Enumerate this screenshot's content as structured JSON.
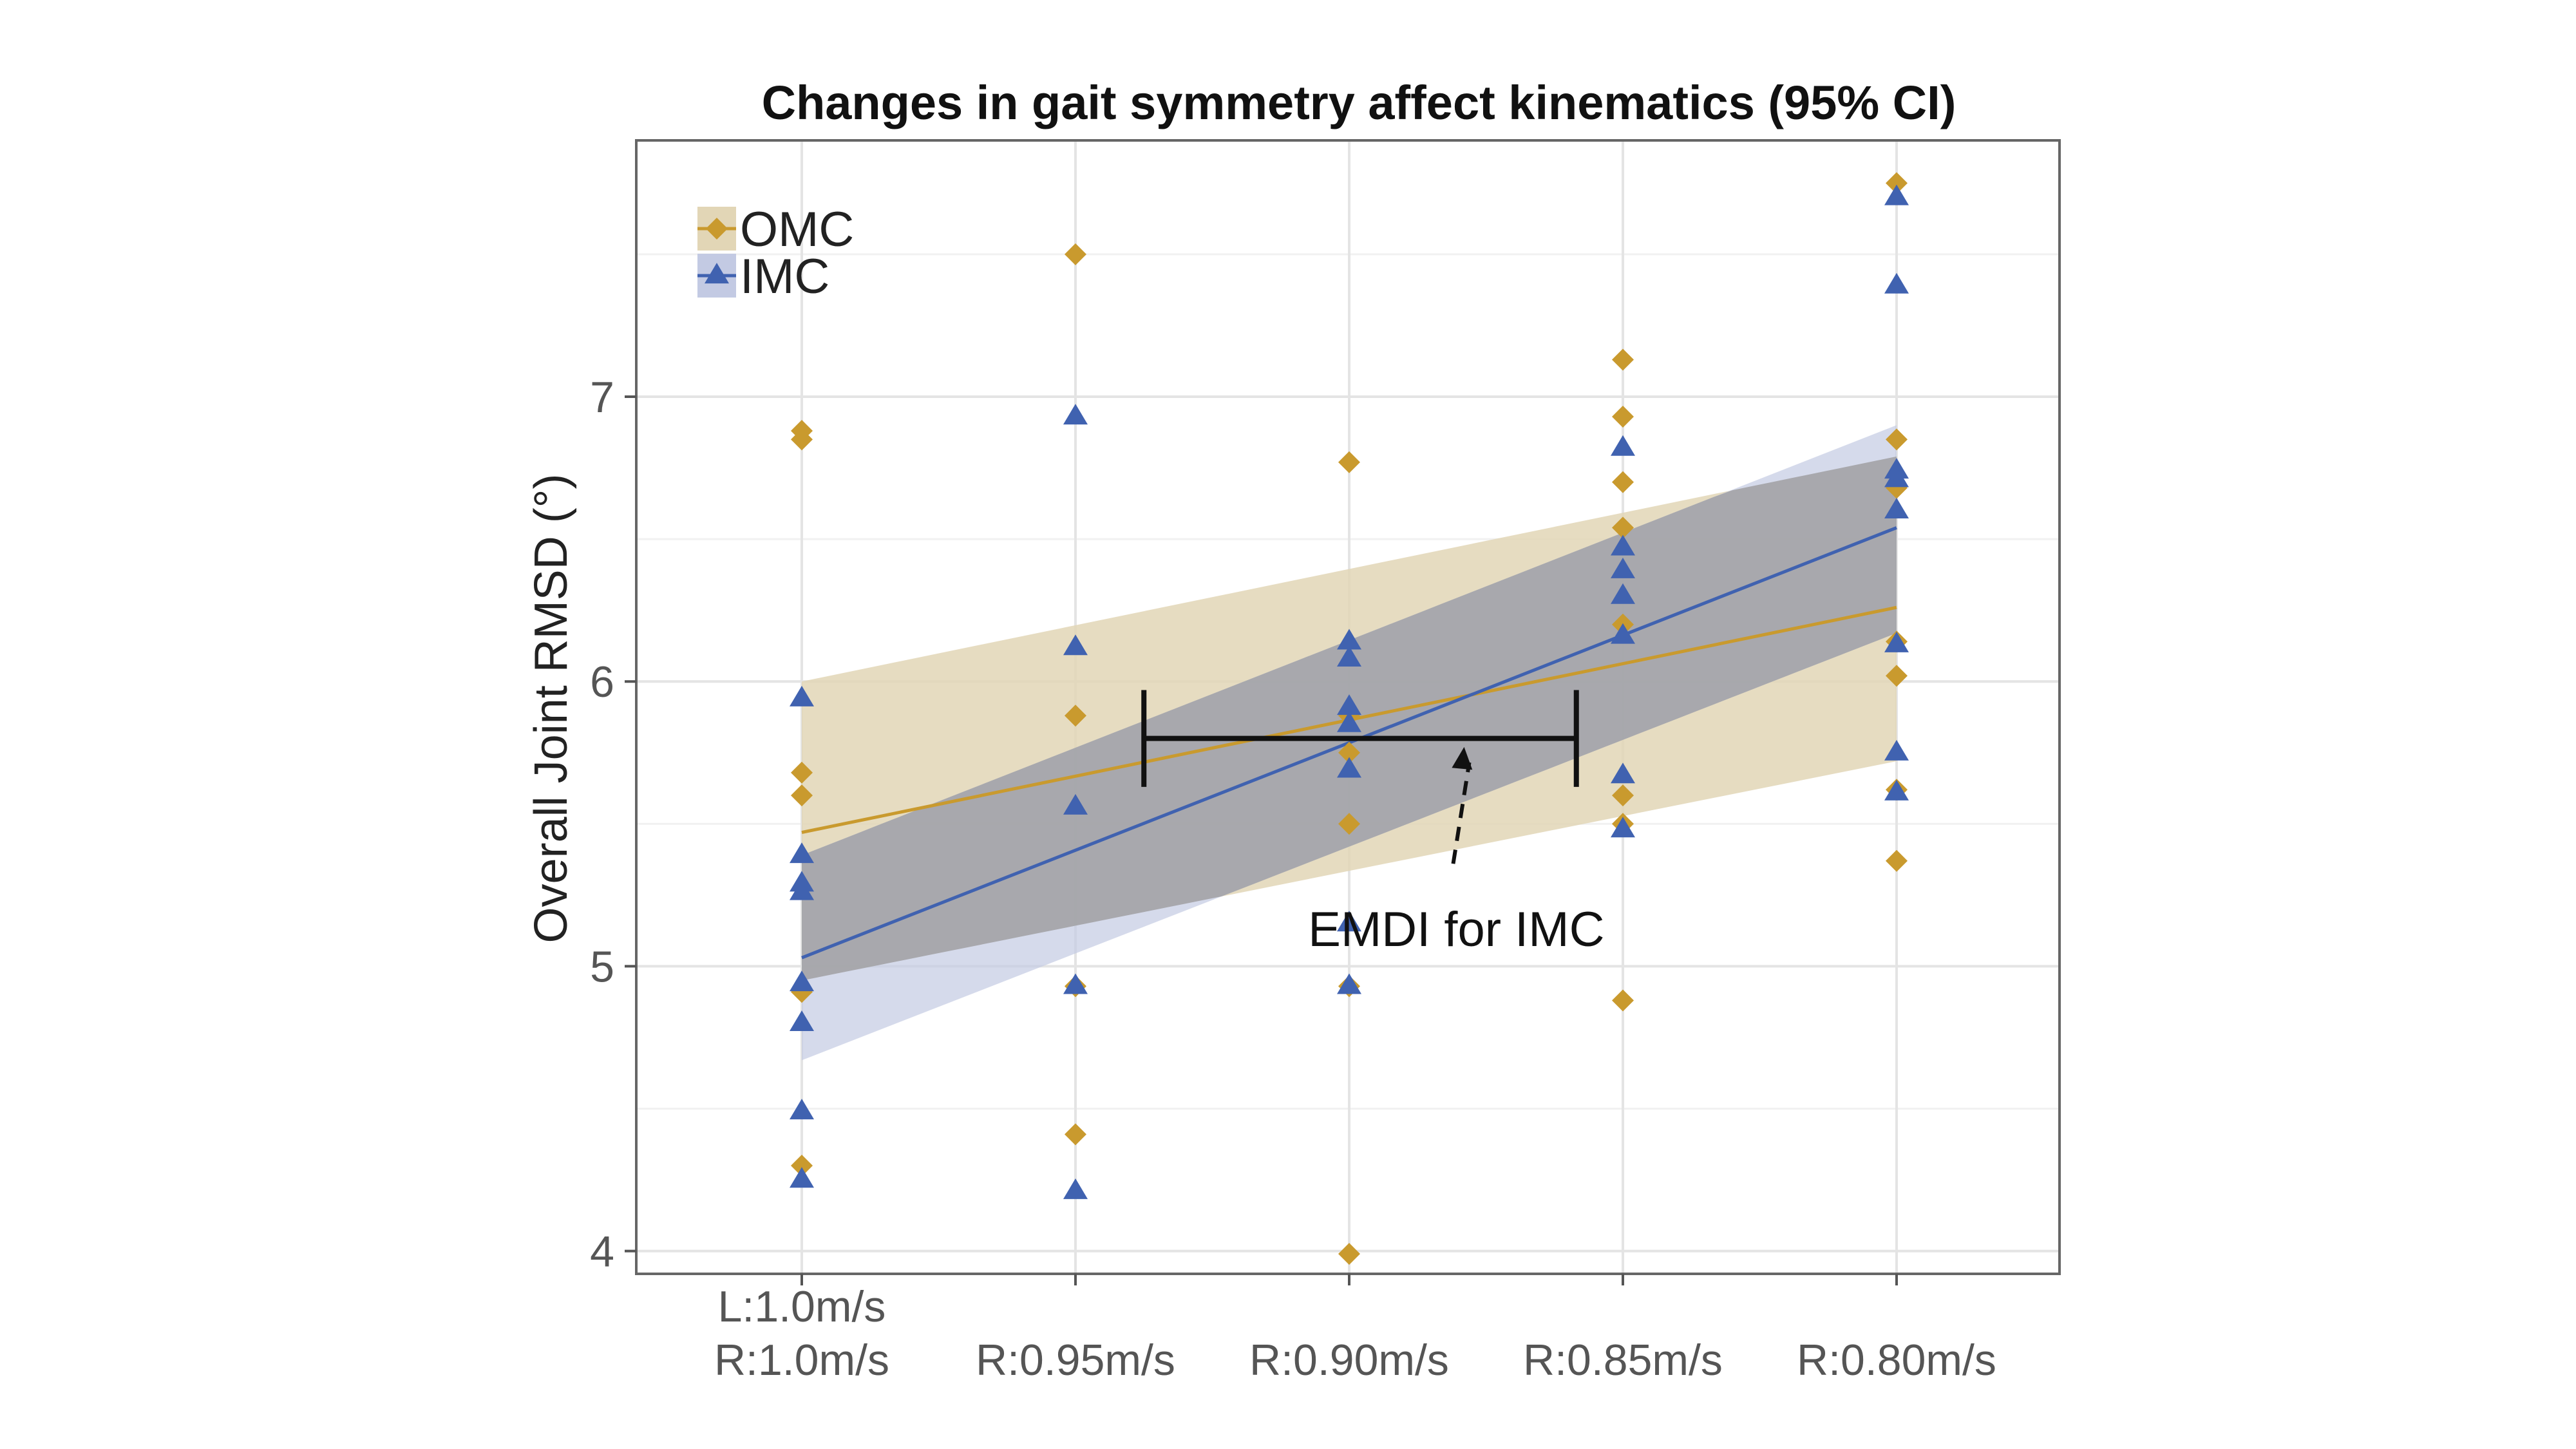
{
  "chart_data": {
    "type": "scatter",
    "title": "Changes in gait symmetry affect kinematics (95% CI)",
    "ylabel": "Overall Joint RMSD (°)",
    "xlabel": "",
    "categories": [
      [
        "L:1.0m/s",
        "R:1.0m/s"
      ],
      [
        "R:0.95m/s"
      ],
      [
        "R:0.90m/s"
      ],
      [
        "R:0.85m/s"
      ],
      [
        "R:0.80m/s"
      ]
    ],
    "yticks": [
      4,
      5,
      6,
      7
    ],
    "ylim": [
      3.92,
      7.9
    ],
    "grid": true,
    "legend_position": "top-left",
    "series": [
      {
        "name": "OMC",
        "color": "#C99A2E",
        "band_color": "#E2D6B6",
        "marker": "diamond",
        "points": [
          [
            0,
            6.88
          ],
          [
            0,
            6.85
          ],
          [
            0,
            5.68
          ],
          [
            0,
            5.6
          ],
          [
            0,
            4.91
          ],
          [
            0,
            4.3
          ],
          [
            1,
            7.5
          ],
          [
            1,
            5.88
          ],
          [
            1,
            4.93
          ],
          [
            1,
            4.41
          ],
          [
            2,
            6.77
          ],
          [
            2,
            5.88
          ],
          [
            2,
            5.75
          ],
          [
            2,
            5.5
          ],
          [
            2,
            4.93
          ],
          [
            2,
            3.99
          ],
          [
            3,
            7.13
          ],
          [
            3,
            6.93
          ],
          [
            3,
            6.7
          ],
          [
            3,
            6.54
          ],
          [
            3,
            6.2
          ],
          [
            3,
            5.6
          ],
          [
            3,
            5.5
          ],
          [
            3,
            4.88
          ],
          [
            4,
            7.75
          ],
          [
            4,
            6.85
          ],
          [
            4,
            6.68
          ],
          [
            4,
            6.14
          ],
          [
            4,
            6.02
          ],
          [
            4,
            5.62
          ],
          [
            4,
            5.37
          ]
        ],
        "fit": {
          "start": 5.47,
          "end": 6.26
        },
        "ci_lower": {
          "start": 4.95,
          "end": 5.72
        },
        "ci_upper": {
          "start": 6.0,
          "end": 6.79
        }
      },
      {
        "name": "IMC",
        "color": "#4062B0",
        "band_color": "#C3CAE3",
        "marker": "triangle",
        "points": [
          [
            0,
            5.94
          ],
          [
            0,
            5.39
          ],
          [
            0,
            5.29
          ],
          [
            0,
            5.26
          ],
          [
            0,
            4.94
          ],
          [
            0,
            4.8
          ],
          [
            0,
            4.49
          ],
          [
            0,
            4.25
          ],
          [
            1,
            6.93
          ],
          [
            1,
            6.12
          ],
          [
            1,
            5.56
          ],
          [
            1,
            4.93
          ],
          [
            1,
            4.21
          ],
          [
            2,
            6.14
          ],
          [
            2,
            6.08
          ],
          [
            2,
            5.91
          ],
          [
            2,
            5.85
          ],
          [
            2,
            5.69
          ],
          [
            2,
            5.15
          ],
          [
            2,
            4.93
          ],
          [
            3,
            6.82
          ],
          [
            3,
            6.47
          ],
          [
            3,
            6.39
          ],
          [
            3,
            6.3
          ],
          [
            3,
            6.16
          ],
          [
            3,
            5.67
          ],
          [
            3,
            5.48
          ],
          [
            4,
            7.7
          ],
          [
            4,
            7.39
          ],
          [
            4,
            6.74
          ],
          [
            4,
            6.71
          ],
          [
            4,
            6.6
          ],
          [
            4,
            6.13
          ],
          [
            4,
            5.75
          ],
          [
            4,
            5.61
          ]
        ],
        "fit": {
          "start": 5.03,
          "end": 6.54
        },
        "ci_lower": {
          "start": 4.67,
          "end": 6.17
        },
        "ci_upper": {
          "start": 5.39,
          "end": 6.9
        }
      }
    ],
    "annotations": [
      {
        "text": "EMDI for IMC",
        "bracket_x": [
          1.25,
          2.83
        ],
        "bracket_y": 5.8,
        "bracket_cap_half_height": 0.17,
        "arrow_from": [
          2.38,
          5.36
        ],
        "arrow_to": [
          2.42,
          5.77
        ],
        "text_anchor": [
          1.85,
          5.13
        ],
        "marker_glyph_at": [
          2.0,
          5.15
        ]
      }
    ]
  }
}
